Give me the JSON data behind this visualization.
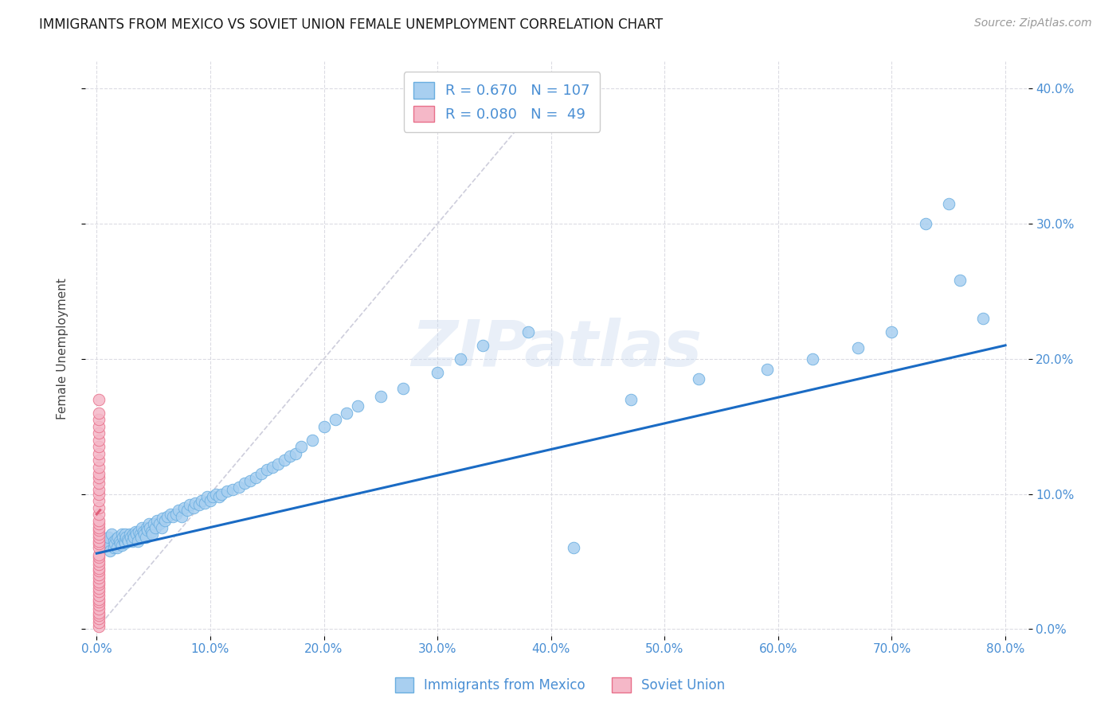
{
  "title": "IMMIGRANTS FROM MEXICO VS SOVIET UNION FEMALE UNEMPLOYMENT CORRELATION CHART",
  "source": "Source: ZipAtlas.com",
  "ylabel_label": "Female Unemployment",
  "xlim": [
    -0.01,
    0.82
  ],
  "ylim": [
    -0.005,
    0.42
  ],
  "x_ticks": [
    0.0,
    0.1,
    0.2,
    0.3,
    0.4,
    0.5,
    0.6,
    0.7,
    0.8
  ],
  "y_ticks": [
    0.0,
    0.1,
    0.2,
    0.3,
    0.4
  ],
  "mexico_color": "#a8cff0",
  "mexico_edge_color": "#6aaee0",
  "soviet_color": "#f5b8c8",
  "soviet_edge_color": "#e8708a",
  "mexico_R": 0.67,
  "mexico_N": 107,
  "soviet_R": 0.08,
  "soviet_N": 49,
  "trend_blue_color": "#1a6bc4",
  "trend_pink_color": "#e0607a",
  "diag_color": "#c8c8d8",
  "watermark": "ZIPatlas",
  "watermark_color": "#c8d8ee",
  "background_color": "#ffffff",
  "mexico_x": [
    0.005,
    0.008,
    0.01,
    0.01,
    0.012,
    0.013,
    0.015,
    0.015,
    0.016,
    0.017,
    0.018,
    0.019,
    0.02,
    0.021,
    0.022,
    0.022,
    0.023,
    0.024,
    0.025,
    0.025,
    0.026,
    0.027,
    0.028,
    0.029,
    0.03,
    0.031,
    0.032,
    0.033,
    0.034,
    0.035,
    0.036,
    0.037,
    0.038,
    0.039,
    0.04,
    0.041,
    0.042,
    0.043,
    0.044,
    0.045,
    0.046,
    0.047,
    0.048,
    0.049,
    0.05,
    0.052,
    0.053,
    0.055,
    0.057,
    0.058,
    0.06,
    0.062,
    0.065,
    0.067,
    0.07,
    0.072,
    0.075,
    0.077,
    0.08,
    0.082,
    0.085,
    0.087,
    0.09,
    0.092,
    0.095,
    0.097,
    0.1,
    0.102,
    0.105,
    0.108,
    0.11,
    0.115,
    0.12,
    0.125,
    0.13,
    0.135,
    0.14,
    0.145,
    0.15,
    0.155,
    0.16,
    0.165,
    0.17,
    0.175,
    0.18,
    0.19,
    0.2,
    0.21,
    0.22,
    0.23,
    0.25,
    0.27,
    0.3,
    0.32,
    0.34,
    0.38,
    0.42,
    0.47,
    0.53,
    0.59,
    0.63,
    0.67,
    0.7,
    0.73,
    0.75,
    0.76,
    0.78
  ],
  "mexico_y": [
    0.06,
    0.065,
    0.062,
    0.068,
    0.058,
    0.07,
    0.06,
    0.065,
    0.063,
    0.067,
    0.06,
    0.068,
    0.065,
    0.063,
    0.062,
    0.07,
    0.068,
    0.065,
    0.064,
    0.07,
    0.068,
    0.066,
    0.065,
    0.07,
    0.068,
    0.065,
    0.07,
    0.068,
    0.072,
    0.07,
    0.065,
    0.072,
    0.07,
    0.068,
    0.075,
    0.072,
    0.07,
    0.068,
    0.075,
    0.073,
    0.078,
    0.075,
    0.072,
    0.07,
    0.078,
    0.075,
    0.08,
    0.078,
    0.075,
    0.082,
    0.08,
    0.083,
    0.085,
    0.083,
    0.085,
    0.088,
    0.083,
    0.09,
    0.088,
    0.092,
    0.09,
    0.093,
    0.092,
    0.095,
    0.093,
    0.098,
    0.095,
    0.098,
    0.1,
    0.098,
    0.1,
    0.102,
    0.103,
    0.105,
    0.108,
    0.11,
    0.112,
    0.115,
    0.118,
    0.12,
    0.122,
    0.125,
    0.128,
    0.13,
    0.135,
    0.14,
    0.15,
    0.155,
    0.16,
    0.165,
    0.172,
    0.178,
    0.19,
    0.2,
    0.21,
    0.22,
    0.06,
    0.17,
    0.185,
    0.192,
    0.2,
    0.208,
    0.22,
    0.3,
    0.315,
    0.258,
    0.23
  ],
  "soviet_x": [
    0.002,
    0.002,
    0.002,
    0.002,
    0.002,
    0.002,
    0.002,
    0.002,
    0.002,
    0.002,
    0.002,
    0.002,
    0.002,
    0.002,
    0.002,
    0.002,
    0.002,
    0.002,
    0.002,
    0.002,
    0.002,
    0.002,
    0.002,
    0.002,
    0.002,
    0.002,
    0.002,
    0.002,
    0.002,
    0.002,
    0.002,
    0.002,
    0.002,
    0.002,
    0.002,
    0.002,
    0.002,
    0.002,
    0.002,
    0.002,
    0.002,
    0.002,
    0.002,
    0.002,
    0.002,
    0.002,
    0.002,
    0.002,
    0.002
  ],
  "soviet_y": [
    0.002,
    0.005,
    0.008,
    0.01,
    0.012,
    0.015,
    0.018,
    0.02,
    0.022,
    0.025,
    0.028,
    0.03,
    0.033,
    0.035,
    0.038,
    0.04,
    0.043,
    0.045,
    0.048,
    0.05,
    0.053,
    0.055,
    0.06,
    0.063,
    0.065,
    0.068,
    0.07,
    0.073,
    0.075,
    0.078,
    0.08,
    0.085,
    0.09,
    0.095,
    0.1,
    0.103,
    0.108,
    0.112,
    0.115,
    0.12,
    0.125,
    0.13,
    0.135,
    0.14,
    0.145,
    0.15,
    0.155,
    0.16,
    0.17
  ],
  "blue_trend_x": [
    0.0,
    0.8
  ],
  "blue_trend_y": [
    0.056,
    0.21
  ],
  "pink_trend_x": [
    0.0,
    0.003
  ],
  "pink_trend_y": [
    0.085,
    0.088
  ]
}
